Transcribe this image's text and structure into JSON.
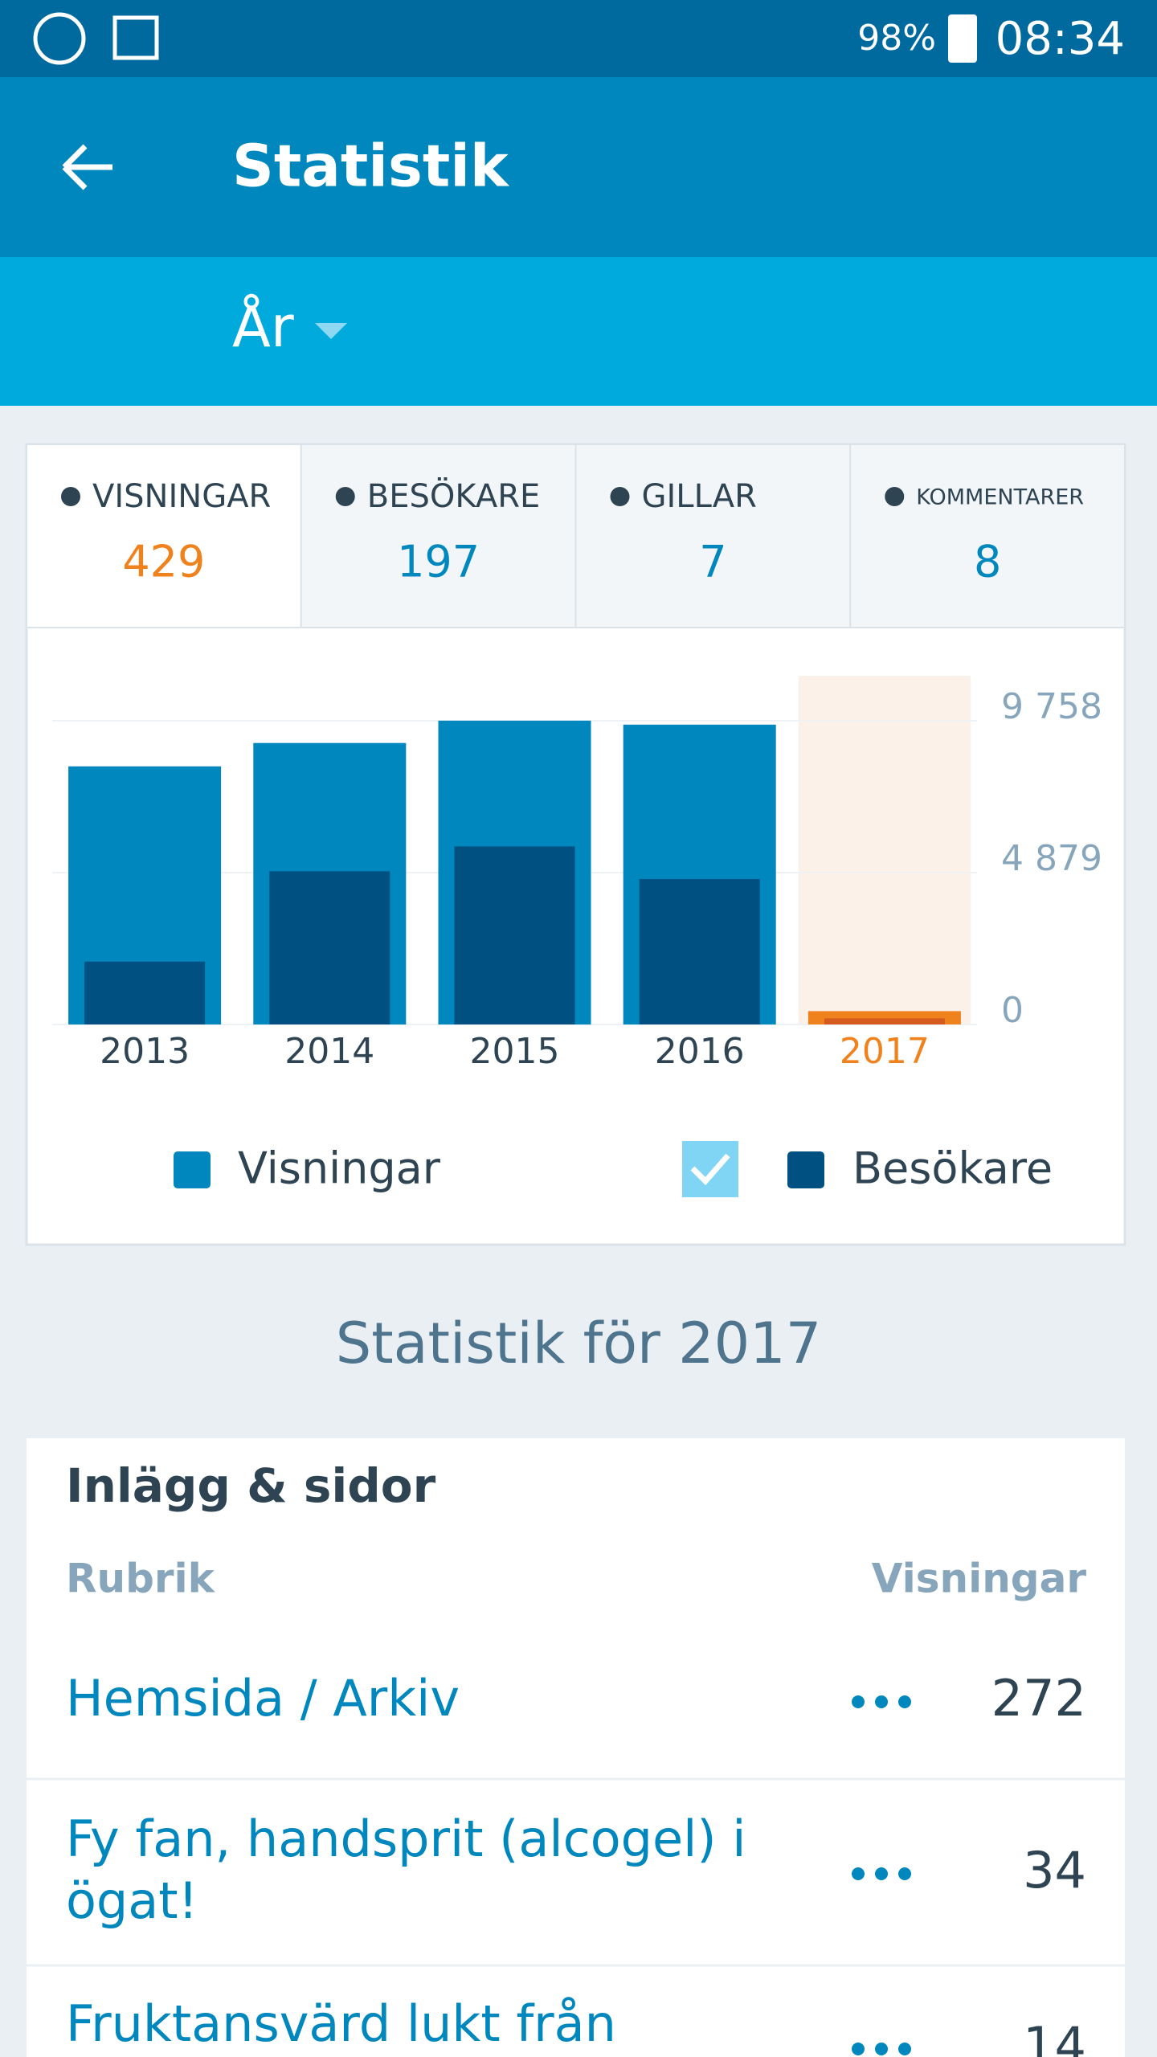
{
  "status_bar": {
    "battery": "98%",
    "time": "08:34"
  },
  "app_bar": {
    "title": "Statistik"
  },
  "period": {
    "label": "År"
  },
  "tabs": [
    {
      "label": "VISNINGAR",
      "value": 429
    },
    {
      "label": "BESÖKARE",
      "value": 197
    },
    {
      "label": "GILLAR",
      "value": 7
    },
    {
      "label": "KOMMENTARER",
      "value": 8
    }
  ],
  "chart_data": {
    "type": "bar",
    "categories": [
      "2013",
      "2014",
      "2015",
      "2016",
      "2017"
    ],
    "series": [
      {
        "name": "Visningar",
        "color": "#0087be",
        "highlight_color": "#f0821e",
        "values": [
          8290,
          9040,
          9758,
          9630,
          429
        ]
      },
      {
        "name": "Besökare",
        "color": "#005082",
        "highlight_color": "#d65a1e",
        "values": [
          2020,
          4920,
          5720,
          4670,
          197
        ]
      }
    ],
    "selected": 4,
    "ylim": [
      0,
      11200
    ],
    "yticks": [
      0,
      {
        "value": 4879,
        "label": "4 879"
      },
      {
        "value": 9758,
        "label": "9 758"
      }
    ],
    "grid": true
  },
  "section_title": "Statistik för 2017",
  "posts": {
    "title": "Inlägg & sidor",
    "columns": [
      "Rubrik",
      "Visningar"
    ],
    "rows": [
      {
        "title": "Hemsida / Arkiv",
        "views": 272
      },
      {
        "title": "Fy fan, handsprit (alcogel) i",
        "title2": "ögat!",
        "views": 34
      },
      {
        "title": "Fruktansvärd lukt från",
        "views": 14
      }
    ]
  }
}
